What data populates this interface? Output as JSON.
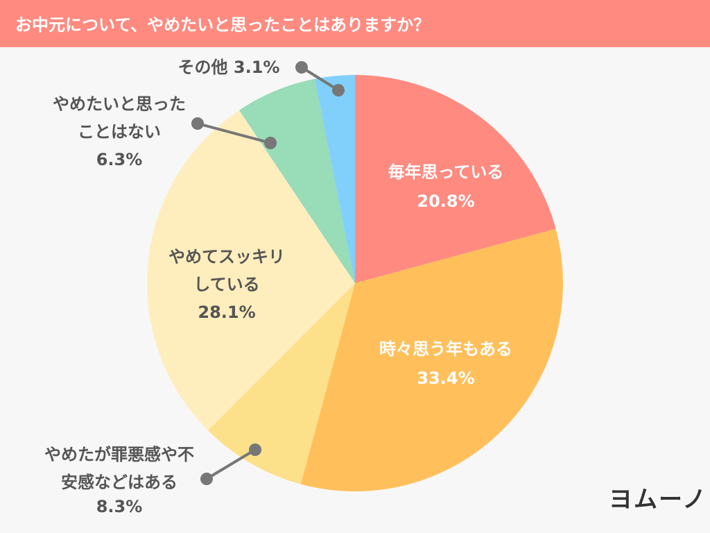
{
  "chart_data": {
    "type": "pie",
    "title": "お中元について、やめたいと思ったことはありますか？",
    "categories": [
      "毎年思っている",
      "時々思う年もある",
      "やめたが罪悪感や不安感などはある",
      "やめてスッキリしている",
      "やめたいと思ったことはない",
      "その他"
    ],
    "values": [
      20.8,
      33.4,
      8.3,
      28.1,
      6.3,
      3.1
    ],
    "value_labels": [
      "20.8%",
      "33.4%",
      "8.3%",
      "28.1%",
      "6.3%",
      "3.1%"
    ],
    "colors": [
      "#ff8a80",
      "#ffc05c",
      "#fde08a",
      "#ffeebd",
      "#98dcb8",
      "#80d0fb"
    ],
    "logo": "ヨムーノ"
  }
}
